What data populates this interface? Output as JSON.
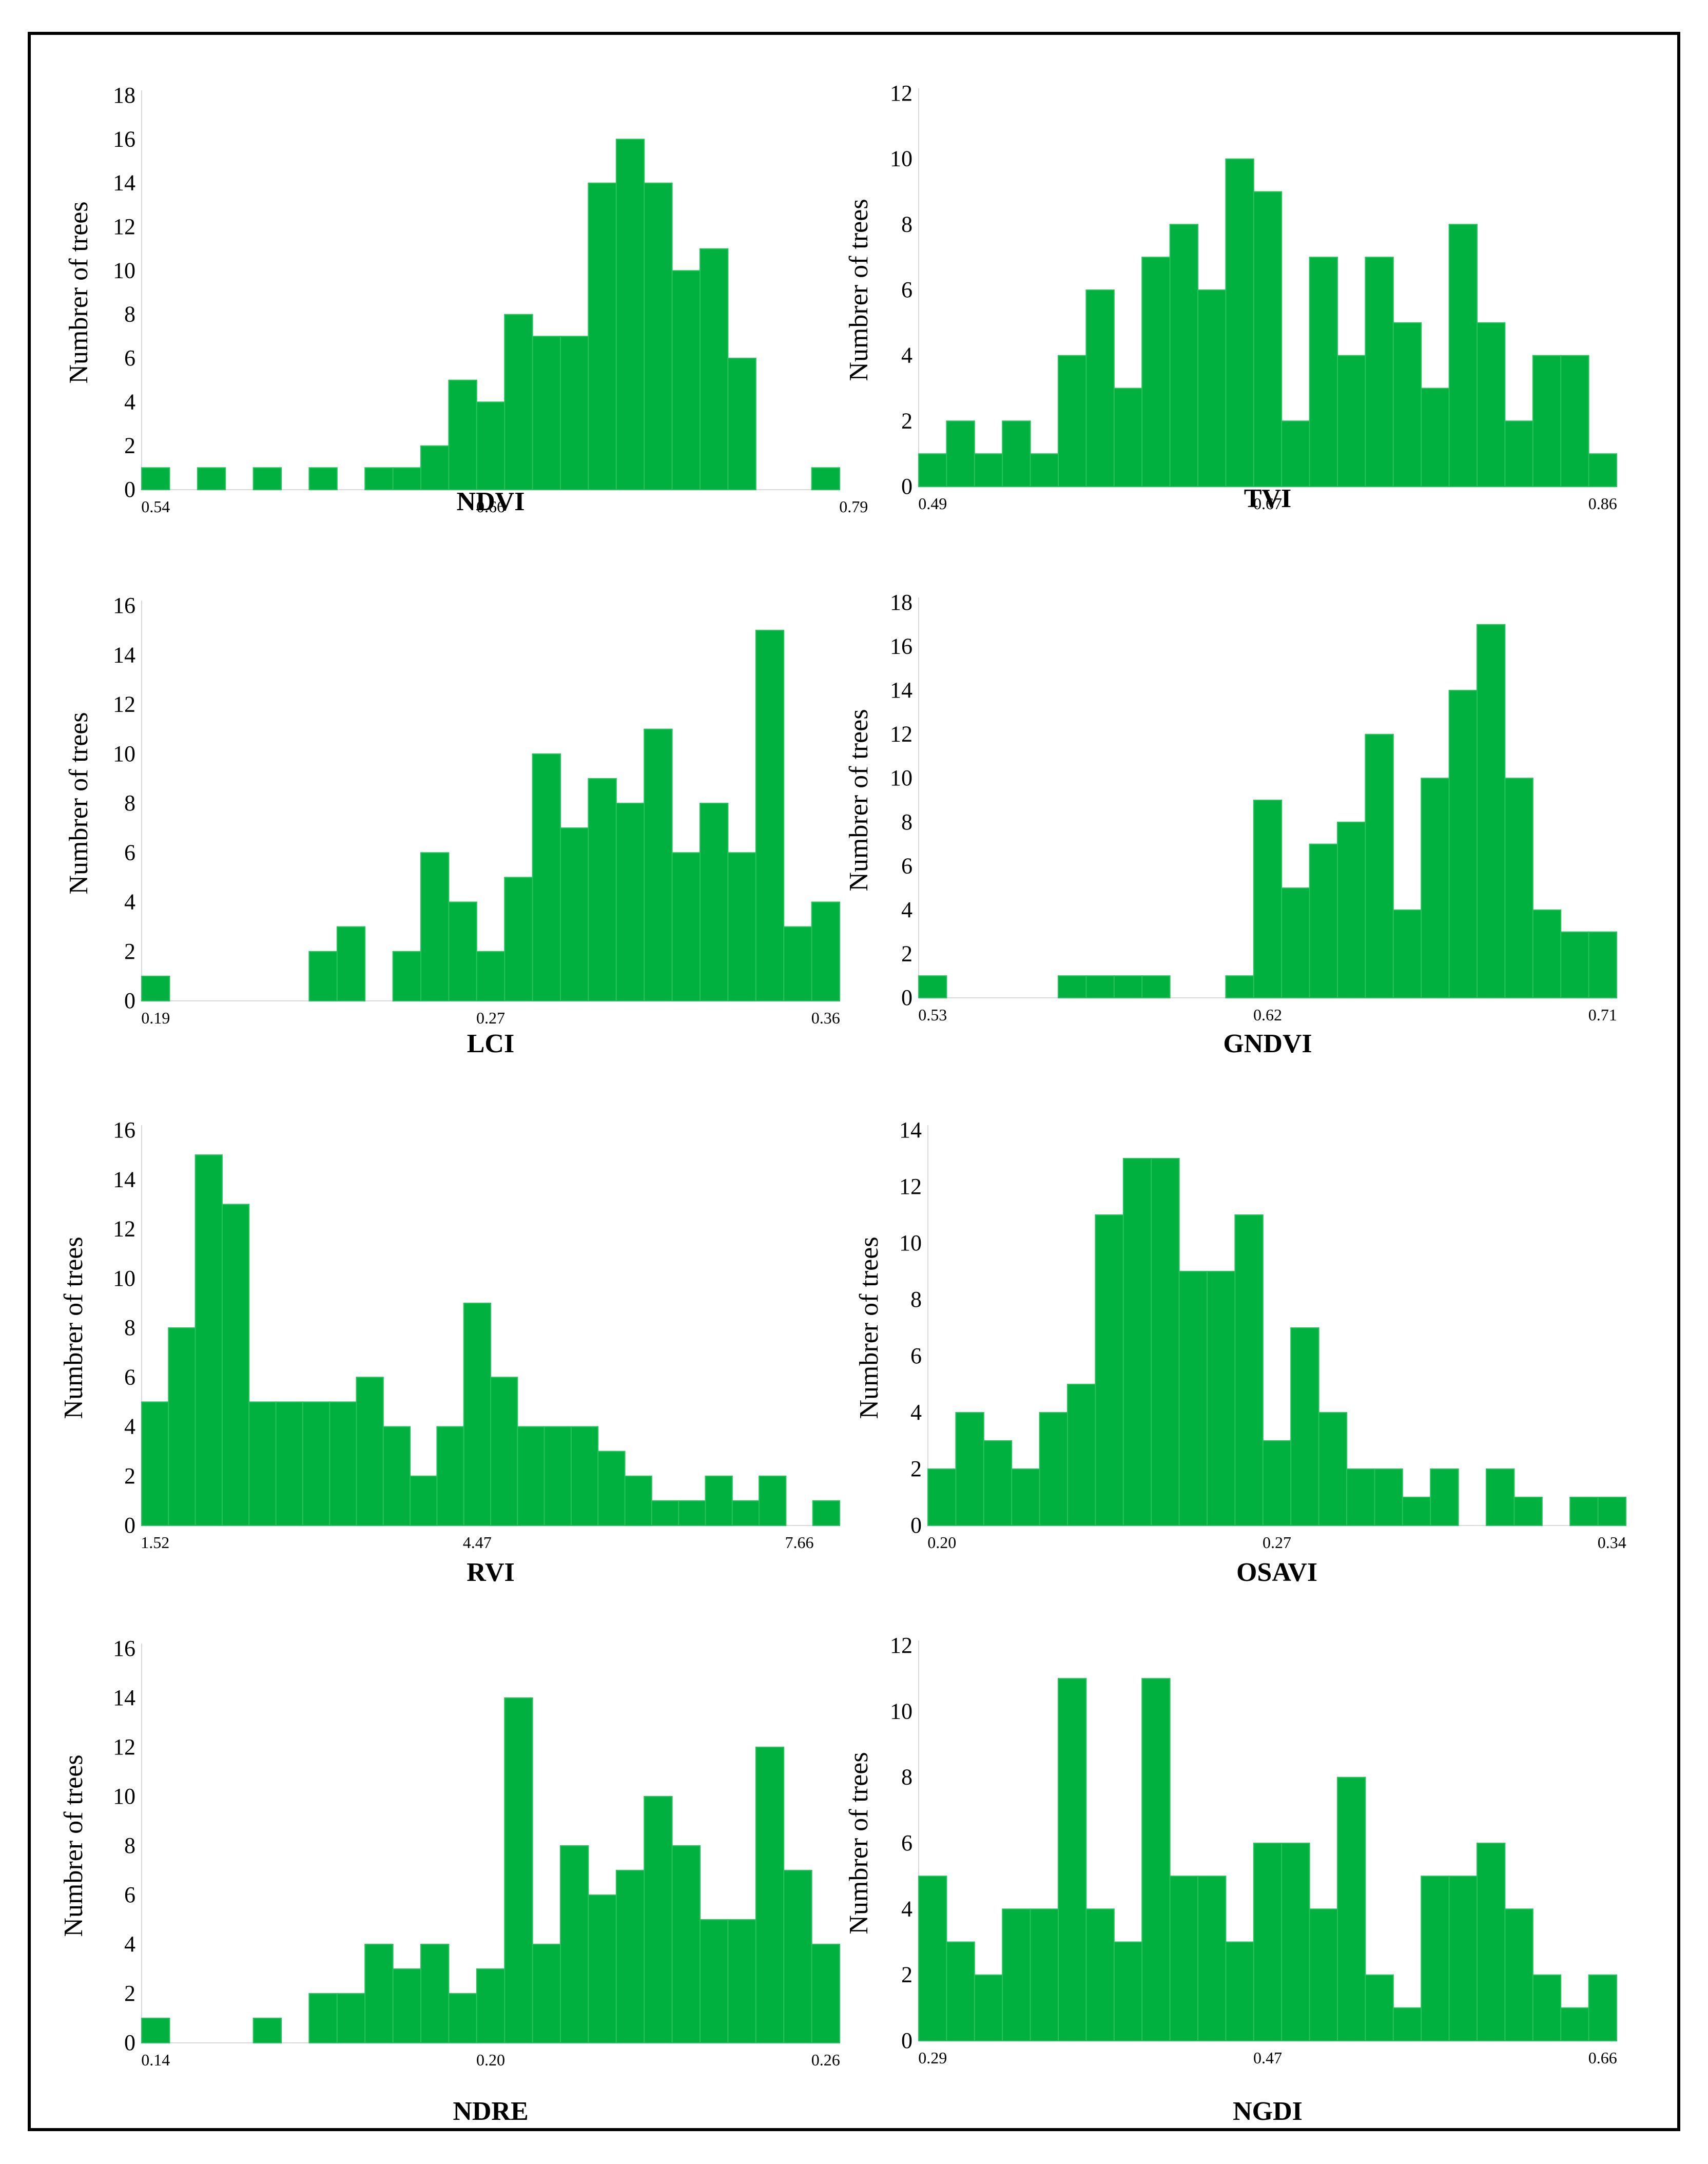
{
  "colors": {
    "bar": "#00b140",
    "frame": "#000000"
  },
  "chart_data": [
    {
      "type": "bar",
      "xlabel": "NDVI",
      "ylabel": "Numbrer of trees",
      "x_ticks": [
        "0.54",
        "0.66",
        "0.79"
      ],
      "x_tick_bins": [
        0,
        12,
        25
      ],
      "ylim": [
        0,
        18
      ],
      "yticks": [
        0,
        2,
        4,
        6,
        8,
        10,
        12,
        14,
        16,
        18
      ],
      "values": [
        1,
        0,
        1,
        0,
        1,
        0,
        1,
        0,
        1,
        1,
        2,
        5,
        4,
        8,
        7,
        7,
        14,
        16,
        14,
        10,
        11,
        6,
        0,
        0,
        1
      ],
      "grid": false
    },
    {
      "type": "bar",
      "xlabel": "TVI",
      "ylabel": "Numbrer of trees",
      "x_ticks": [
        "0.49",
        "0.67",
        "0.86"
      ],
      "x_tick_bins": [
        0,
        12,
        24
      ],
      "ylim": [
        0,
        12
      ],
      "yticks": [
        0,
        2,
        4,
        6,
        8,
        10,
        12
      ],
      "values": [
        1,
        2,
        1,
        2,
        1,
        4,
        6,
        3,
        7,
        8,
        6,
        10,
        9,
        2,
        7,
        4,
        7,
        5,
        3,
        8,
        5,
        2,
        4,
        4,
        1
      ],
      "grid": false
    },
    {
      "type": "bar",
      "xlabel": "LCI",
      "ylabel": "Numbrer of trees",
      "x_ticks": [
        "0.19",
        "0.27",
        "0.36"
      ],
      "x_tick_bins": [
        0,
        12,
        24
      ],
      "ylim": [
        0,
        16
      ],
      "yticks": [
        0,
        2,
        4,
        6,
        8,
        10,
        12,
        14,
        16
      ],
      "values": [
        1,
        0,
        0,
        0,
        0,
        0,
        2,
        3,
        0,
        2,
        6,
        4,
        2,
        5,
        10,
        7,
        9,
        8,
        11,
        6,
        8,
        6,
        15,
        3,
        4
      ],
      "grid": false
    },
    {
      "type": "bar",
      "xlabel": "GNDVI",
      "ylabel": "Numbrer of trees",
      "x_ticks": [
        "0.53",
        "0.62",
        "0.71"
      ],
      "x_tick_bins": [
        0,
        12,
        24
      ],
      "ylim": [
        0,
        18
      ],
      "yticks": [
        0,
        2,
        4,
        6,
        8,
        10,
        12,
        14,
        16,
        18
      ],
      "values": [
        1,
        0,
        0,
        0,
        0,
        1,
        1,
        1,
        1,
        0,
        0,
        1,
        9,
        5,
        7,
        8,
        12,
        4,
        10,
        14,
        17,
        10,
        4,
        3,
        3
      ],
      "grid": false
    },
    {
      "type": "bar",
      "xlabel": "RVI",
      "ylabel": "Numbrer of trees",
      "x_ticks": [
        "1.52",
        "4.47",
        "7.66"
      ],
      "x_tick_bins": [
        0,
        12,
        24
      ],
      "ylim": [
        0,
        16
      ],
      "yticks": [
        0,
        2,
        4,
        6,
        8,
        10,
        12,
        14,
        16
      ],
      "values": [
        5,
        8,
        15,
        13,
        5,
        5,
        5,
        5,
        6,
        4,
        2,
        4,
        9,
        6,
        4,
        4,
        4,
        3,
        2,
        1,
        1,
        2,
        1,
        2,
        0,
        1
      ],
      "grid": false
    },
    {
      "type": "bar",
      "xlabel": "OSAVI",
      "ylabel": "Numbrer of trees",
      "x_ticks": [
        "0.20",
        "0.27",
        "0.34"
      ],
      "x_tick_bins": [
        0,
        12,
        24
      ],
      "ylim": [
        0,
        14
      ],
      "yticks": [
        0,
        2,
        4,
        6,
        8,
        10,
        12,
        14
      ],
      "values": [
        2,
        4,
        3,
        2,
        4,
        5,
        11,
        13,
        13,
        9,
        9,
        11,
        3,
        7,
        4,
        2,
        2,
        1,
        2,
        0,
        2,
        1,
        0,
        1,
        1
      ],
      "grid": false
    },
    {
      "type": "bar",
      "xlabel": "NDRE",
      "ylabel": "Numbrer of trees",
      "x_ticks": [
        "0.14",
        "0.20",
        "0.26"
      ],
      "x_tick_bins": [
        0,
        12,
        24
      ],
      "ylim": [
        0,
        16
      ],
      "yticks": [
        0,
        2,
        4,
        6,
        8,
        10,
        12,
        14,
        16
      ],
      "values": [
        1,
        0,
        0,
        0,
        1,
        0,
        2,
        2,
        4,
        3,
        4,
        2,
        3,
        14,
        4,
        8,
        6,
        7,
        10,
        8,
        5,
        5,
        12,
        7,
        4
      ],
      "grid": false
    },
    {
      "type": "bar",
      "xlabel": "NGDI",
      "ylabel": "Numbrer of trees",
      "x_ticks": [
        "0.29",
        "0.47",
        "0.66"
      ],
      "x_tick_bins": [
        0,
        12,
        24
      ],
      "ylim": [
        0,
        12
      ],
      "yticks": [
        0,
        2,
        4,
        6,
        8,
        10,
        12
      ],
      "values": [
        5,
        3,
        2,
        4,
        4,
        11,
        4,
        3,
        11,
        5,
        5,
        3,
        6,
        6,
        4,
        8,
        2,
        1,
        5,
        5,
        6,
        4,
        2,
        1,
        2
      ],
      "grid": false
    }
  ]
}
